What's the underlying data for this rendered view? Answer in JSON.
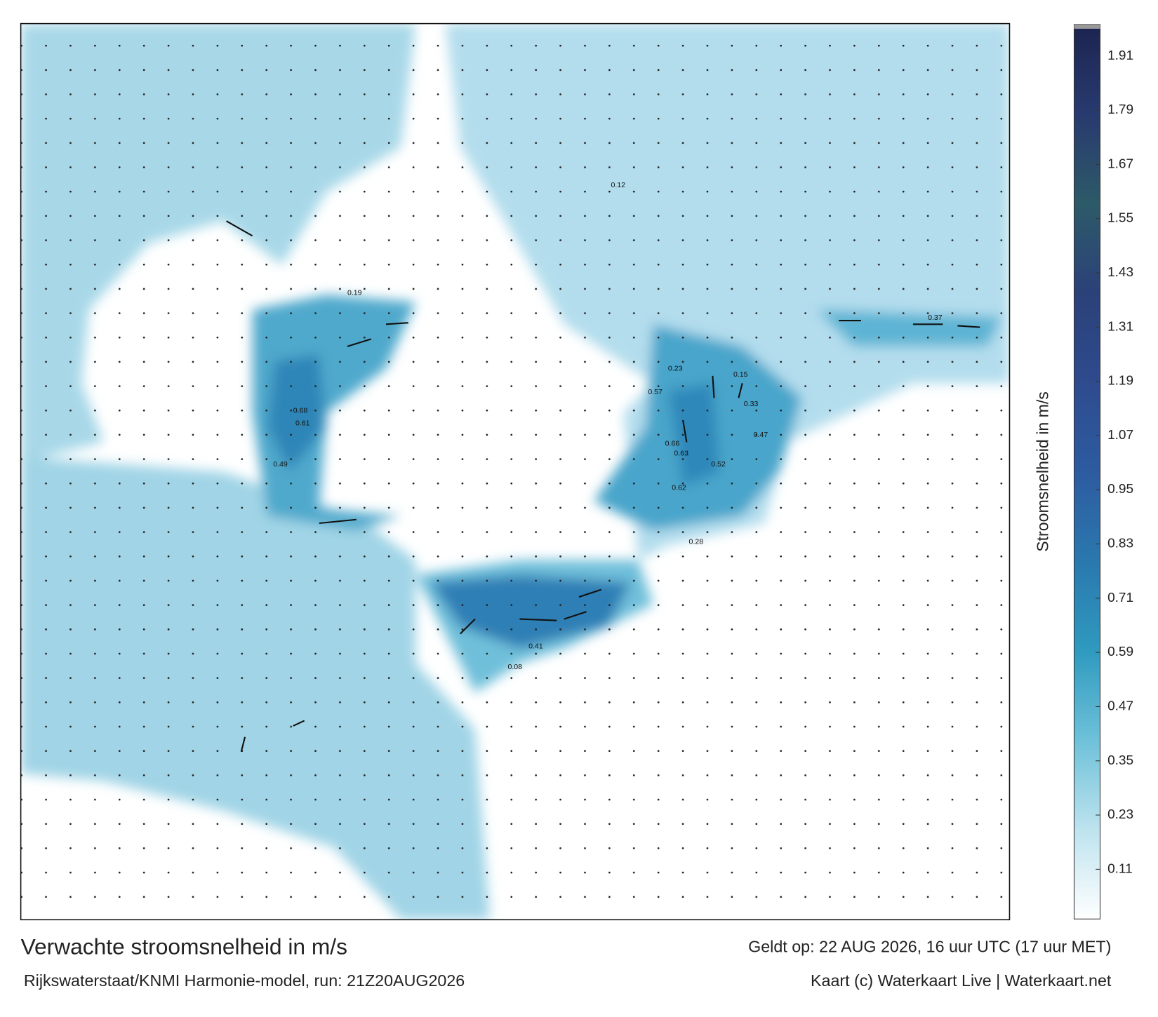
{
  "title": "Verwachte stroomsnelheid in m/s",
  "valid_time": "Geldt op: 22 AUG 2026, 16 uur UTC (17 uur MET)",
  "model_run": "Rijkswaterstaat/KNMI Harmonie-model, run: 21Z20AUG2026",
  "credit": "Kaart (c) Waterkaart Live | Waterkaart.net",
  "colorbar": {
    "label": "Stroomsnelheid in m/s",
    "lim": [
      0,
      1.98
    ],
    "ticks": [
      0.11,
      0.23,
      0.35,
      0.47,
      0.59,
      0.71,
      0.83,
      0.95,
      1.07,
      1.19,
      1.31,
      1.43,
      1.55,
      1.67,
      1.79,
      1.91
    ],
    "colors": [
      "#ffffff",
      "#bde3ee",
      "#6ec1d9",
      "#2f9abf",
      "#2a78ae",
      "#2d5ba0",
      "#2e4b8e",
      "#2b4179",
      "#2d5a68",
      "#283a6f",
      "#1c2450"
    ]
  },
  "map_labels": [
    0.68,
    0.66,
    0.63,
    0.62,
    0.61,
    0.57,
    0.52,
    0.49,
    0.47,
    0.41,
    0.37,
    0.33,
    0.28,
    0.23,
    0.19,
    0.15,
    0.12,
    0.08
  ]
}
